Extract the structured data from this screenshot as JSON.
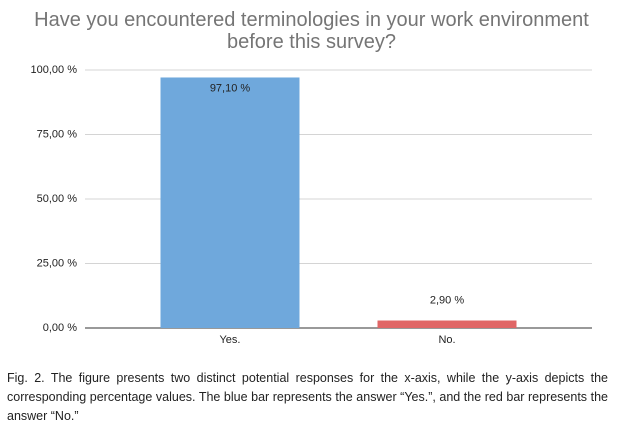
{
  "chart_data": {
    "type": "bar",
    "title": "Have you encountered terminologies in your work environment before this survey?",
    "categories": [
      "Yes.",
      "No."
    ],
    "values": [
      97.1,
      2.9
    ],
    "value_labels": [
      "97,10 %",
      "2,90 %"
    ],
    "colors": [
      "#6fa8dc",
      "#e06666"
    ],
    "ylim": [
      0,
      100
    ],
    "yticks": [
      {
        "value": 0,
        "label": "0,00 %"
      },
      {
        "value": 25,
        "label": "25,00 %"
      },
      {
        "value": 50,
        "label": "50,00 %"
      },
      {
        "value": 75,
        "label": "75,00 %"
      },
      {
        "value": 100,
        "label": "100,00 %"
      }
    ],
    "grid": true
  },
  "caption": "Fig. 2. The figure presents two distinct potential responses for the x-axis, while the y-axis depicts the corresponding percentage values. The blue bar represents the answer “Yes.”, and the red bar represents the answer “No.”"
}
